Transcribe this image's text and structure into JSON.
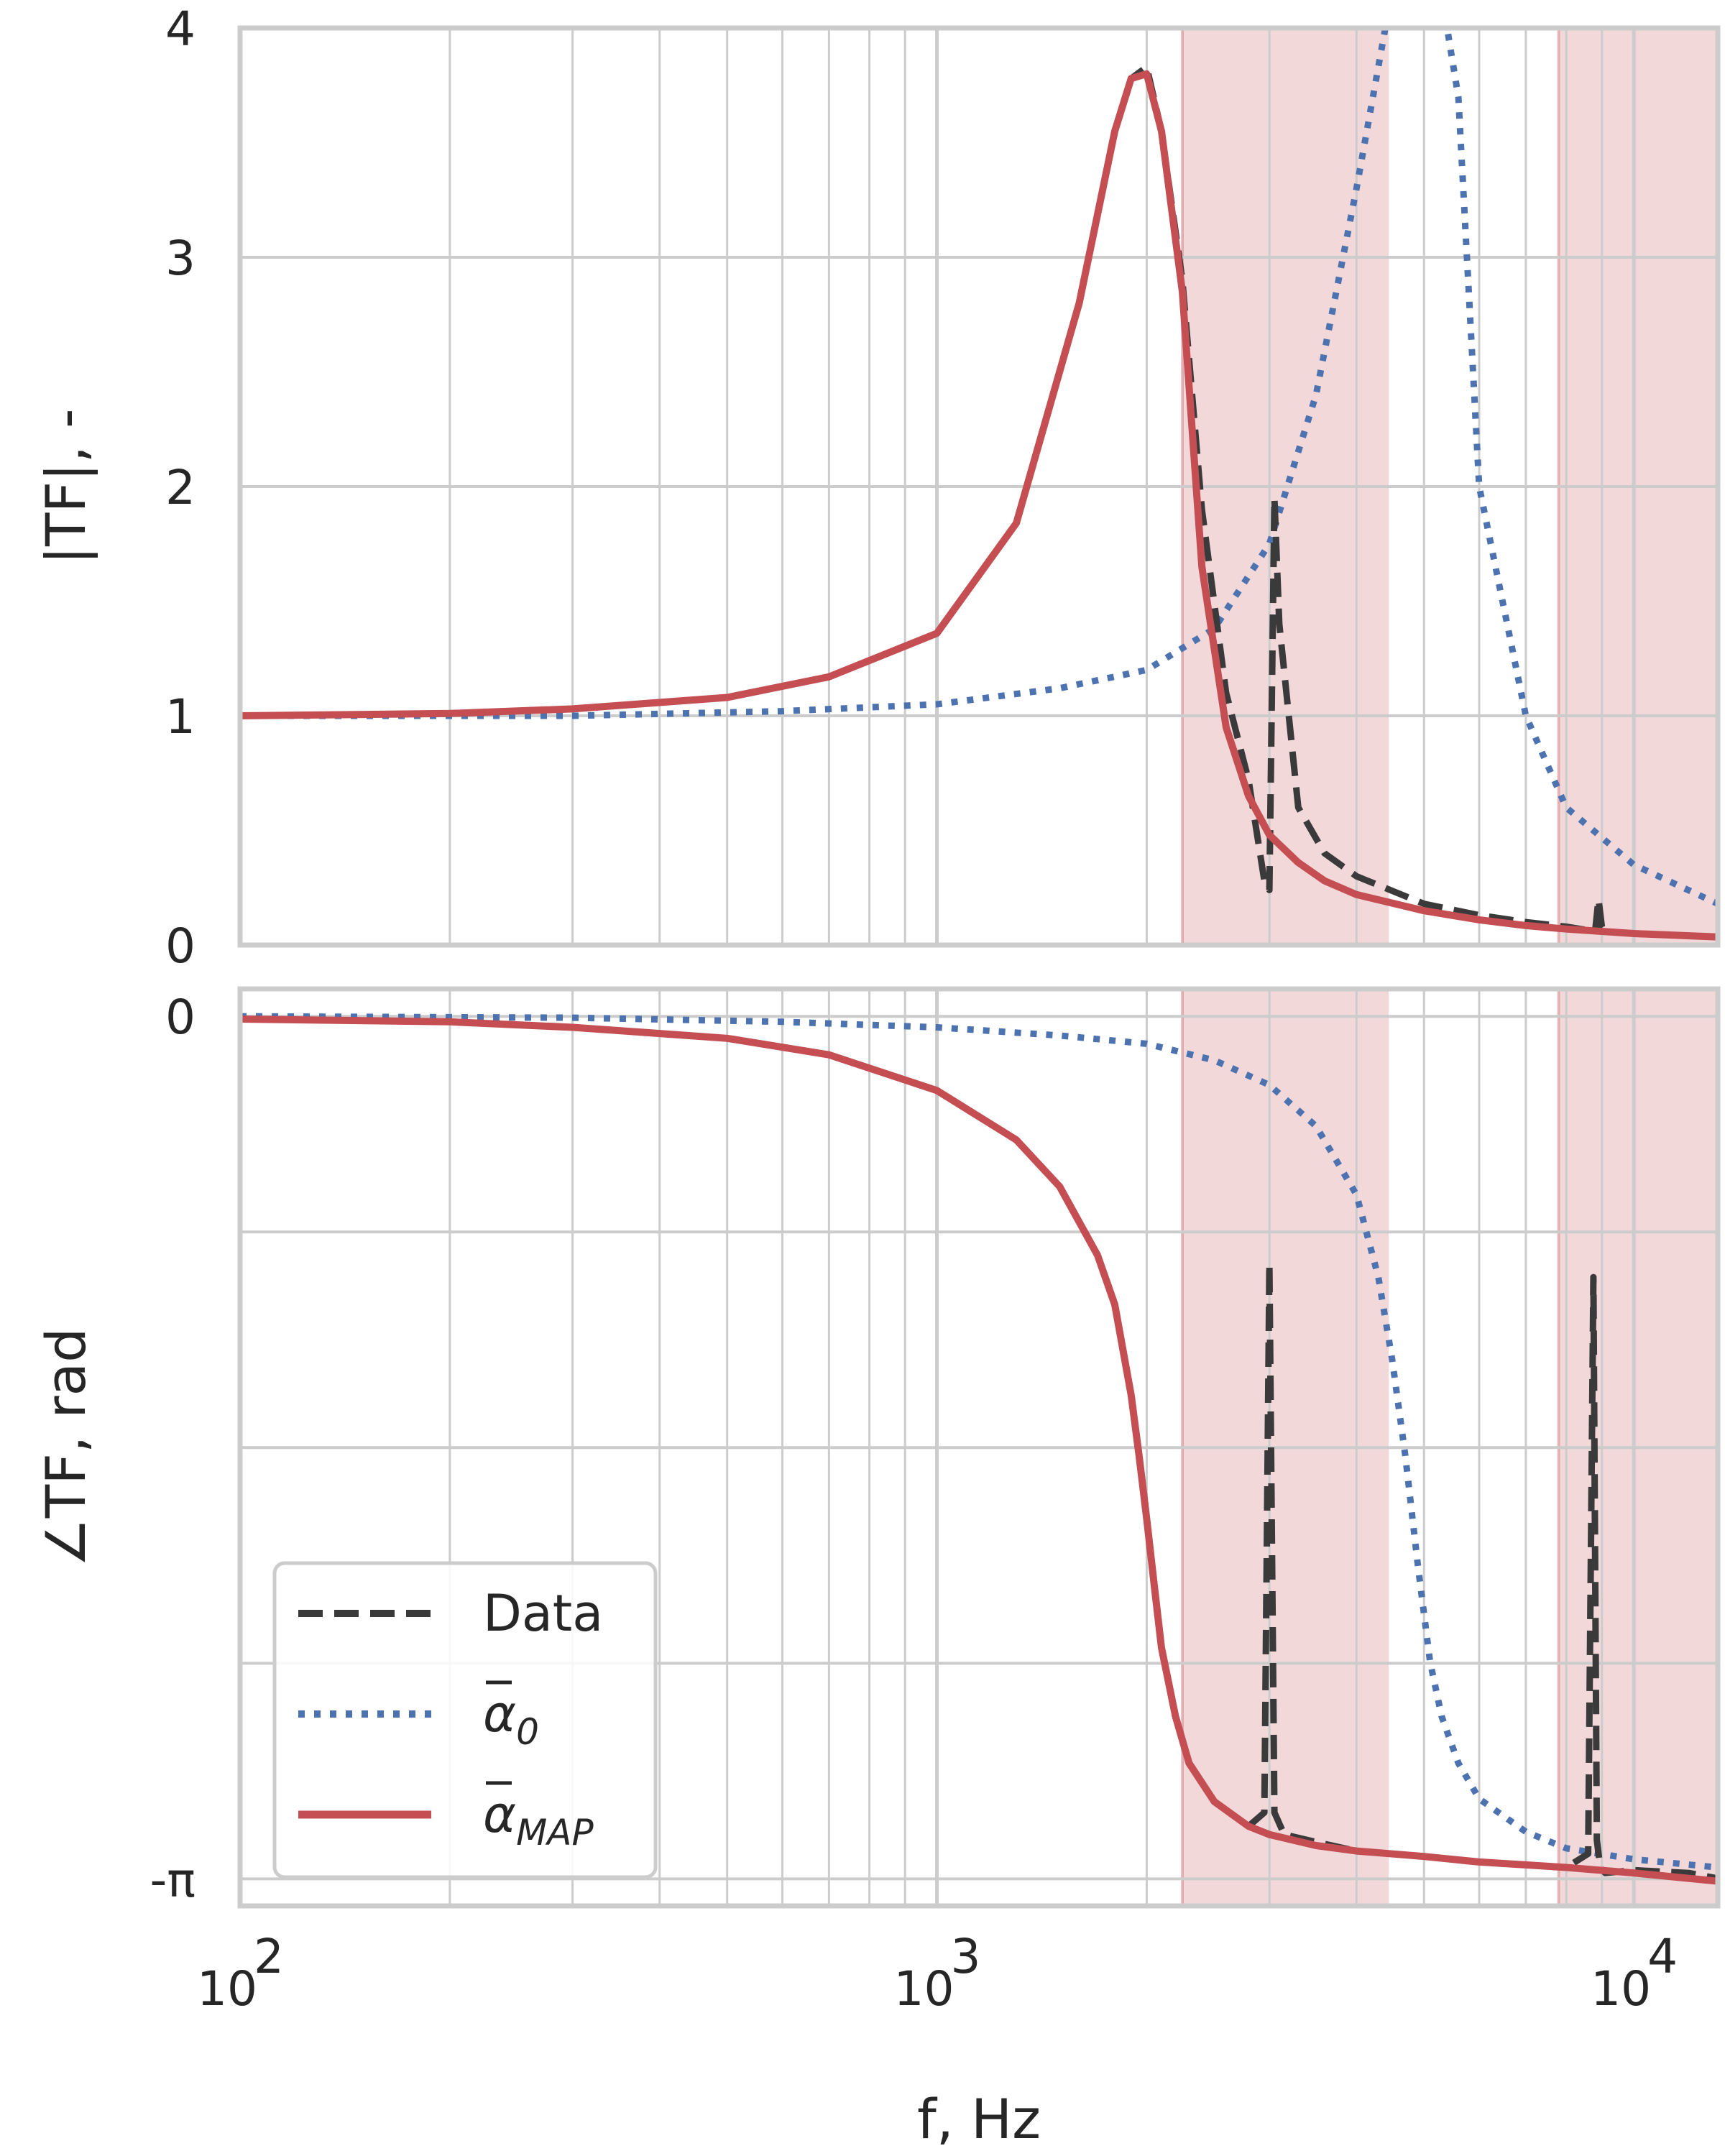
{
  "chart_data": [
    {
      "type": "line",
      "panel": "top",
      "xscale": "log",
      "xlim": [
        100,
        13200
      ],
      "ylim": [
        0,
        4
      ],
      "ylabel": "|TF|, -",
      "yticks": [
        0,
        1,
        2,
        3,
        4
      ],
      "ytick_labels": [
        "0",
        "1",
        "2",
        "3",
        "4"
      ],
      "grid": true,
      "shaded_bands_hz": [
        [
          2250,
          4450
        ],
        [
          7800,
          13200
        ]
      ],
      "series": [
        {
          "name": "Data",
          "style": "dashed",
          "color": "#3a3a3a",
          "x": [
            100,
            200,
            300,
            500,
            700,
            1000,
            1300,
            1600,
            1800,
            1900,
            2000,
            2100,
            2250,
            2400,
            2600,
            2800,
            2950,
            3000,
            3050,
            3100,
            3300,
            3600,
            4000,
            5000,
            6000,
            7000,
            8000,
            8800,
            8900,
            9000,
            9100,
            10000,
            12000,
            13200
          ],
          "y": [
            1.0,
            1.01,
            1.03,
            1.08,
            1.17,
            1.36,
            1.84,
            2.8,
            3.55,
            3.78,
            3.83,
            3.55,
            2.9,
            1.9,
            1.1,
            0.72,
            0.28,
            0.24,
            1.95,
            1.4,
            0.6,
            0.4,
            0.3,
            0.18,
            0.13,
            0.1,
            0.08,
            0.06,
            0.2,
            0.08,
            0.06,
            0.05,
            0.04,
            0.035
          ]
        },
        {
          "name": "α̅0",
          "style": "dotted",
          "color": "#4c72b0",
          "x": [
            100,
            300,
            600,
            1000,
            1500,
            2000,
            2500,
            3000,
            3500,
            4000,
            4400,
            4600,
            5200,
            5600,
            6000,
            7000,
            8000,
            10000,
            13200
          ],
          "y": [
            1.0,
            1.0,
            1.02,
            1.05,
            1.12,
            1.2,
            1.38,
            1.75,
            2.4,
            3.3,
            4.0,
            4.3,
            4.3,
            3.7,
            2.0,
            1.0,
            0.6,
            0.35,
            0.18
          ]
        },
        {
          "name": "α̅MAP",
          "style": "solid",
          "color": "#c44e52",
          "x": [
            100,
            200,
            300,
            500,
            700,
            1000,
            1300,
            1600,
            1800,
            1900,
            2000,
            2100,
            2250,
            2400,
            2600,
            2800,
            3000,
            3300,
            3600,
            4000,
            5000,
            6000,
            7000,
            8000,
            10000,
            13200
          ],
          "y": [
            1.0,
            1.01,
            1.03,
            1.08,
            1.17,
            1.36,
            1.84,
            2.8,
            3.55,
            3.78,
            3.8,
            3.55,
            2.85,
            1.65,
            0.95,
            0.65,
            0.48,
            0.36,
            0.28,
            0.22,
            0.15,
            0.11,
            0.085,
            0.07,
            0.05,
            0.035
          ]
        }
      ]
    },
    {
      "type": "line",
      "panel": "bottom",
      "xscale": "log",
      "xlim": [
        100,
        13200
      ],
      "ylim": [
        -3.24,
        0.1
      ],
      "xlabel": "f, Hz",
      "ylabel": "∠TF, rad",
      "xticks": [
        100,
        1000,
        10000
      ],
      "xtick_labels": [
        {
          "base": "10",
          "exp": "2"
        },
        {
          "base": "10",
          "exp": "3"
        },
        {
          "base": "10",
          "exp": "4"
        }
      ],
      "yticks": [
        0,
        -3.14159
      ],
      "ytick_labels": [
        "0",
        "-π"
      ],
      "ygrid": [
        0,
        -0.7854,
        -1.5708,
        -2.3562,
        -3.14159
      ],
      "grid": true,
      "shaded_bands_hz": [
        [
          2250,
          4450
        ],
        [
          7800,
          13200
        ]
      ],
      "legend": {
        "location": "lower-left",
        "entries": [
          "Data",
          "α̅0",
          "α̅MAP"
        ]
      },
      "series": [
        {
          "name": "Data",
          "style": "dashed",
          "color": "#3a3a3a",
          "x": [
            100,
            200,
            300,
            500,
            700,
            1000,
            1300,
            1500,
            1700,
            1800,
            1900,
            1950,
            2000,
            2050,
            2100,
            2200,
            2300,
            2500,
            2800,
            2950,
            3000,
            3050,
            3150,
            3400,
            4000,
            5000,
            6000,
            7000,
            8000,
            8600,
            8750,
            8850,
            8950,
            9100,
            10000,
            12000,
            13200
          ],
          "y": [
            -0.01,
            -0.02,
            -0.04,
            -0.08,
            -0.14,
            -0.27,
            -0.45,
            -0.62,
            -0.87,
            -1.05,
            -1.38,
            -1.6,
            -1.83,
            -2.07,
            -2.3,
            -2.55,
            -2.72,
            -2.86,
            -2.95,
            -2.9,
            -0.9,
            -2.9,
            -2.98,
            -3.0,
            -3.04,
            -3.06,
            -3.08,
            -3.09,
            -3.1,
            -3.05,
            -0.95,
            -3.0,
            -3.1,
            -3.12,
            -3.11,
            -3.12,
            -3.14
          ]
        },
        {
          "name": "α̅0",
          "style": "dotted",
          "color": "#4c72b0",
          "x": [
            100,
            300,
            600,
            1000,
            1500,
            2000,
            2500,
            3000,
            3500,
            4000,
            4300,
            4500,
            4700,
            4900,
            5100,
            5300,
            5600,
            6000,
            7000,
            8000,
            10000,
            13200
          ],
          "y": [
            0.0,
            -0.005,
            -0.02,
            -0.04,
            -0.07,
            -0.1,
            -0.16,
            -0.25,
            -0.4,
            -0.65,
            -0.95,
            -1.25,
            -1.6,
            -2.0,
            -2.35,
            -2.55,
            -2.72,
            -2.85,
            -2.97,
            -3.03,
            -3.07,
            -3.1
          ]
        },
        {
          "name": "α̅MAP",
          "style": "solid",
          "color": "#c44e52",
          "x": [
            100,
            200,
            300,
            500,
            700,
            1000,
            1300,
            1500,
            1700,
            1800,
            1900,
            1950,
            2000,
            2050,
            2100,
            2200,
            2300,
            2500,
            2800,
            3000,
            3500,
            4000,
            5000,
            6000,
            8000,
            10000,
            13200
          ],
          "y": [
            -0.01,
            -0.02,
            -0.04,
            -0.08,
            -0.14,
            -0.27,
            -0.45,
            -0.62,
            -0.87,
            -1.05,
            -1.38,
            -1.6,
            -1.83,
            -2.07,
            -2.3,
            -2.55,
            -2.72,
            -2.86,
            -2.95,
            -2.98,
            -3.02,
            -3.04,
            -3.06,
            -3.08,
            -3.1,
            -3.12,
            -3.15
          ]
        }
      ]
    }
  ]
}
